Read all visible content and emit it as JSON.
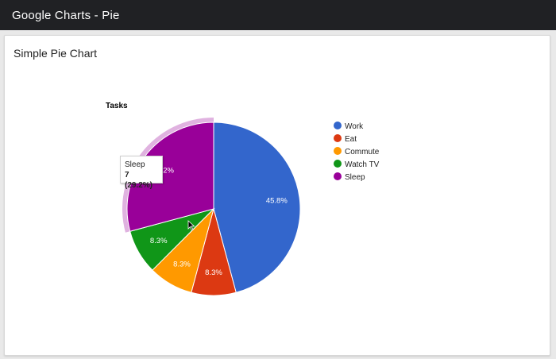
{
  "header": {
    "title": "Google Charts - Pie"
  },
  "card": {
    "title": "Simple Pie Chart"
  },
  "colors": {
    "accent_slice": "#990099"
  },
  "tooltip": {
    "label": "Sleep",
    "value_text": "7",
    "percent_text": "(29.2%)"
  },
  "chart_data": {
    "type": "pie",
    "title": "Tasks",
    "legend_position": "right",
    "categories": [
      "Work",
      "Eat",
      "Commute",
      "Watch TV",
      "Sleep"
    ],
    "values": [
      11,
      2,
      2,
      2,
      7
    ],
    "labels": [
      "45.8%",
      "8.3%",
      "8.3%",
      "8.3%",
      "29.2%"
    ],
    "colors": [
      "#3366cc",
      "#dc3912",
      "#ff9900",
      "#109618",
      "#990099"
    ],
    "highlighted": "Sleep"
  }
}
